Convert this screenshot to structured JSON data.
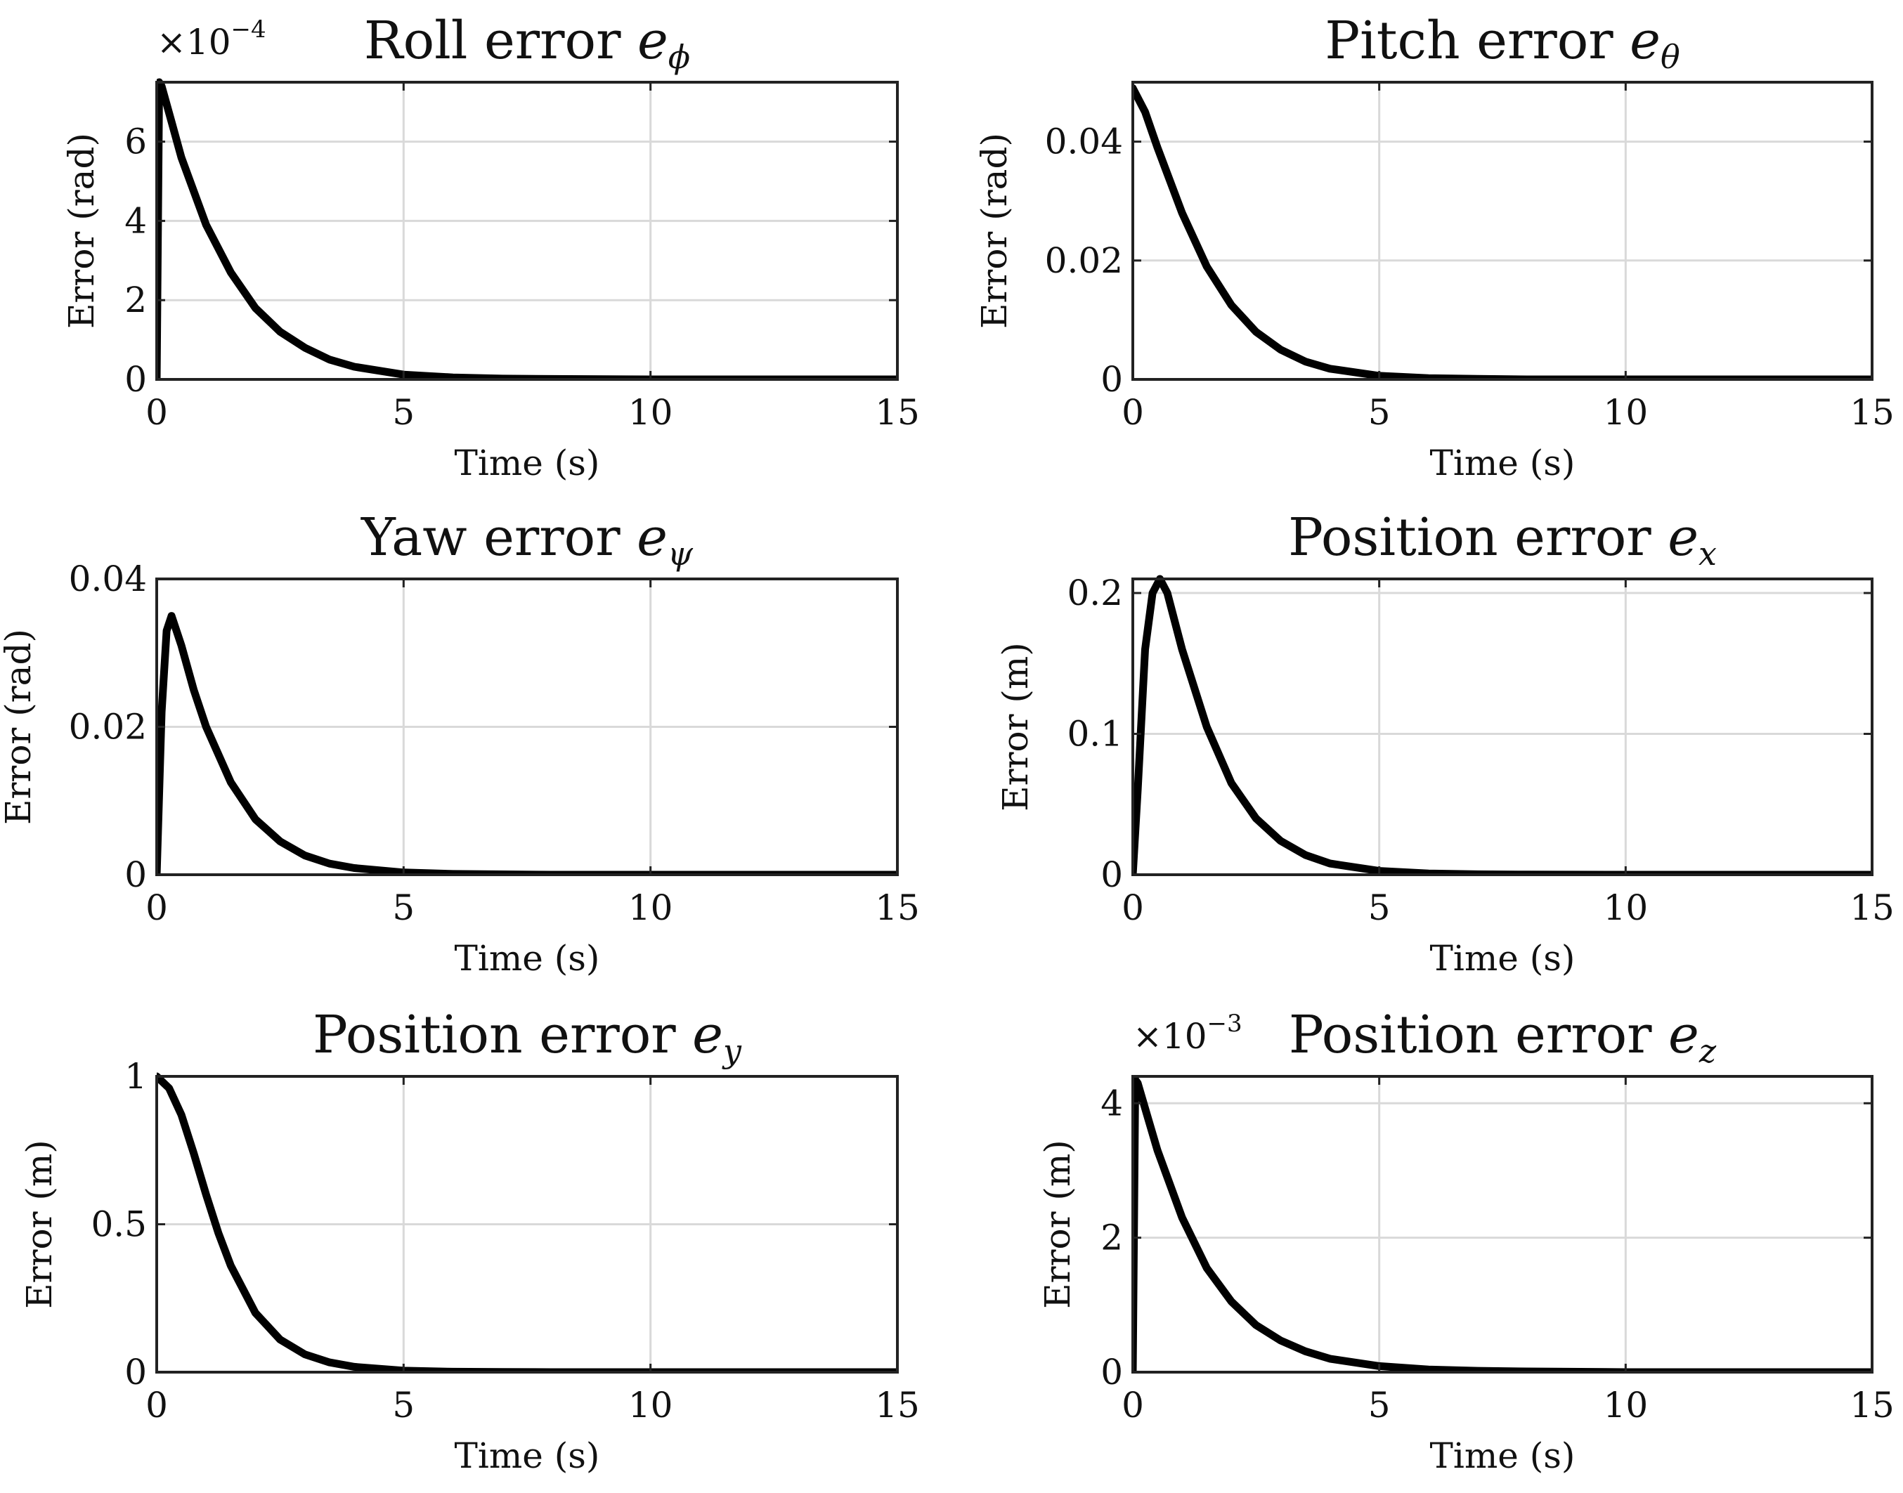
{
  "chart_data": [
    {
      "type": "line",
      "title": {
        "main": "Roll error ",
        "symbol": "e",
        "subscript": "ϕ"
      },
      "xlabel": "Time (s)",
      "ylabel": "Error (rad)",
      "xlim": [
        0,
        15
      ],
      "ylim": [
        0,
        7.5
      ],
      "xticks": [
        0,
        5,
        10,
        15
      ],
      "xtick_labels": [
        "0",
        "5",
        "10",
        "15"
      ],
      "yticks": [
        0,
        2,
        4,
        6
      ],
      "ytick_labels": [
        "0",
        "2",
        "4",
        "6"
      ],
      "multiplier": {
        "base": "×10",
        "exp": "−4"
      },
      "grid": true,
      "series": [
        {
          "x": [
            0,
            0.05,
            0.1,
            0.3,
            0.5,
            1,
            1.5,
            2,
            2.5,
            3,
            3.5,
            4,
            5,
            6,
            7,
            8,
            10,
            12,
            15
          ],
          "values": [
            0,
            7.5,
            7.4,
            6.5,
            5.6,
            3.9,
            2.7,
            1.8,
            1.2,
            0.8,
            0.5,
            0.32,
            0.12,
            0.05,
            0.02,
            0.01,
            0,
            0,
            0
          ]
        }
      ]
    },
    {
      "type": "line",
      "title": {
        "main": "Pitch error ",
        "symbol": "e",
        "subscript": "θ"
      },
      "xlabel": "Time (s)",
      "ylabel": "Error (rad)",
      "xlim": [
        0,
        15
      ],
      "ylim": [
        0,
        0.05
      ],
      "xticks": [
        0,
        5,
        10,
        15
      ],
      "xtick_labels": [
        "0",
        "5",
        "10",
        "15"
      ],
      "yticks": [
        0,
        0.02,
        0.04
      ],
      "ytick_labels": [
        "0",
        "0.02",
        "0.04"
      ],
      "multiplier": null,
      "grid": true,
      "series": [
        {
          "x": [
            0,
            0.25,
            0.5,
            1,
            1.5,
            2,
            2.5,
            3,
            3.5,
            4,
            5,
            6,
            7,
            8,
            10,
            12,
            15
          ],
          "values": [
            0.049,
            0.045,
            0.039,
            0.028,
            0.019,
            0.0125,
            0.008,
            0.005,
            0.003,
            0.0018,
            0.0006,
            0.0002,
            0.0001,
            0,
            0,
            0,
            0
          ]
        }
      ]
    },
    {
      "type": "line",
      "title": {
        "main": "Yaw error ",
        "symbol": "e",
        "subscript": "ψ"
      },
      "xlabel": "Time (s)",
      "ylabel": "Error (rad)",
      "xlim": [
        0,
        15
      ],
      "ylim": [
        0,
        0.04
      ],
      "xticks": [
        0,
        5,
        10,
        15
      ],
      "xtick_labels": [
        "0",
        "5",
        "10",
        "15"
      ],
      "yticks": [
        0,
        0.02,
        0.04
      ],
      "ytick_labels": [
        "0",
        "0.02",
        "0.04"
      ],
      "multiplier": null,
      "grid": true,
      "series": [
        {
          "x": [
            0,
            0.1,
            0.2,
            0.3,
            0.5,
            0.75,
            1,
            1.5,
            2,
            2.5,
            3,
            3.5,
            4,
            5,
            6,
            8,
            10,
            12,
            15
          ],
          "values": [
            0,
            0.022,
            0.033,
            0.035,
            0.031,
            0.025,
            0.02,
            0.0125,
            0.0075,
            0.0045,
            0.0026,
            0.0015,
            0.0009,
            0.0003,
            0.0001,
            0,
            0,
            0,
            0
          ]
        }
      ]
    },
    {
      "type": "line",
      "title": {
        "main": "Position error ",
        "symbol": "e",
        "subscript": "x"
      },
      "xlabel": "Time (s)",
      "ylabel": "Error (m)",
      "xlim": [
        0,
        15
      ],
      "ylim": [
        0,
        0.21
      ],
      "xticks": [
        0,
        5,
        10,
        15
      ],
      "xtick_labels": [
        "0",
        "5",
        "10",
        "15"
      ],
      "yticks": [
        0,
        0.1,
        0.2
      ],
      "ytick_labels": [
        "0",
        "0.1",
        "0.2"
      ],
      "multiplier": null,
      "grid": true,
      "series": [
        {
          "x": [
            0,
            0.1,
            0.25,
            0.4,
            0.55,
            0.7,
            1,
            1.5,
            2,
            2.5,
            3,
            3.5,
            4,
            5,
            6,
            7,
            8,
            10,
            12,
            15
          ],
          "values": [
            0,
            0.06,
            0.16,
            0.2,
            0.21,
            0.2,
            0.16,
            0.105,
            0.065,
            0.04,
            0.024,
            0.014,
            0.008,
            0.0027,
            0.0009,
            0.0003,
            0.0001,
            0,
            0,
            0
          ]
        }
      ]
    },
    {
      "type": "line",
      "title": {
        "main": "Position error ",
        "symbol": "e",
        "subscript": "y"
      },
      "xlabel": "Time (s)",
      "ylabel": "Error (m)",
      "xlim": [
        0,
        15
      ],
      "ylim": [
        0,
        1
      ],
      "xticks": [
        0,
        5,
        10,
        15
      ],
      "xtick_labels": [
        "0",
        "5",
        "10",
        "15"
      ],
      "yticks": [
        0,
        0.5,
        1
      ],
      "ytick_labels": [
        "0",
        "0.5",
        "1"
      ],
      "multiplier": null,
      "grid": true,
      "series": [
        {
          "x": [
            0,
            0.25,
            0.5,
            0.75,
            1,
            1.25,
            1.5,
            2,
            2.5,
            3,
            3.5,
            4,
            5,
            6,
            7,
            8,
            10,
            12,
            15
          ],
          "values": [
            1,
            0.96,
            0.87,
            0.74,
            0.6,
            0.47,
            0.36,
            0.2,
            0.11,
            0.06,
            0.033,
            0.018,
            0.005,
            0.0015,
            0.0005,
            0.0001,
            0,
            0,
            0
          ]
        }
      ]
    },
    {
      "type": "line",
      "title": {
        "main": "Position error ",
        "symbol": "e",
        "subscript": "z"
      },
      "xlabel": "Time (s)",
      "ylabel": "Error (m)",
      "xlim": [
        0,
        15
      ],
      "ylim": [
        0,
        4.4
      ],
      "xticks": [
        0,
        5,
        10,
        15
      ],
      "xtick_labels": [
        "0",
        "5",
        "10",
        "15"
      ],
      "yticks": [
        0,
        2,
        4
      ],
      "ytick_labels": [
        "0",
        "2",
        "4"
      ],
      "multiplier": {
        "base": "×10",
        "exp": "−3"
      },
      "grid": true,
      "series": [
        {
          "x": [
            0,
            0.05,
            0.1,
            0.3,
            0.5,
            1,
            1.5,
            2,
            2.5,
            3,
            3.5,
            4,
            5,
            6,
            7,
            8,
            10,
            12,
            15
          ],
          "values": [
            0,
            4.35,
            4.3,
            3.8,
            3.3,
            2.3,
            1.55,
            1.05,
            0.7,
            0.47,
            0.31,
            0.2,
            0.09,
            0.04,
            0.02,
            0.01,
            0,
            0,
            0
          ]
        }
      ]
    }
  ]
}
